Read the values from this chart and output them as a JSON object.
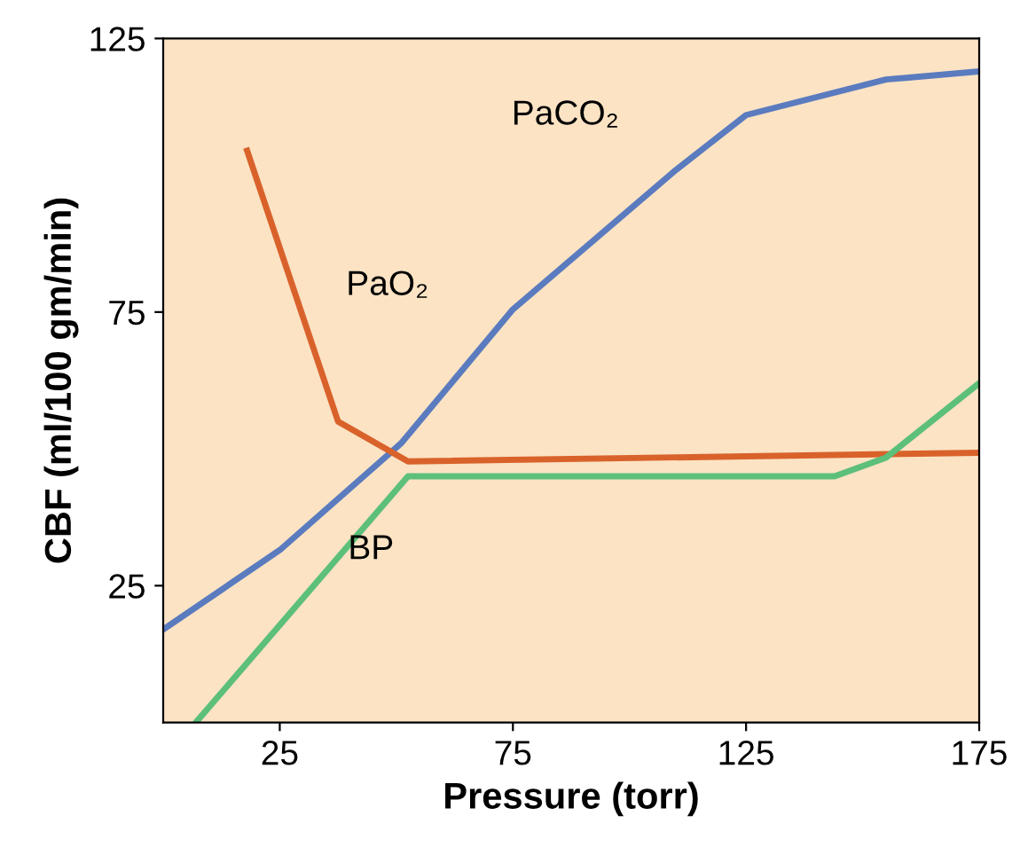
{
  "chart_data": {
    "type": "line",
    "xlabel": "Pressure (torr)",
    "ylabel": "CBF (ml/100 gm/min)",
    "xlim": [
      0,
      175
    ],
    "ylim": [
      0,
      125
    ],
    "xticks": [
      25,
      75,
      125,
      175
    ],
    "yticks": [
      25,
      75,
      125
    ],
    "grid": false,
    "legend": false,
    "marker": "none",
    "line_style": "solid",
    "series": [
      {
        "name": "PaCO₂",
        "color": "#5b7bbf",
        "x": [
          0,
          25,
          51,
          75,
          110,
          125,
          155,
          175
        ],
        "values": [
          17,
          31.5,
          51,
          75.5,
          101,
          111,
          117.5,
          119
        ]
      },
      {
        "name": "PaO₂",
        "color": "#d9622b",
        "x": [
          18,
          37.5,
          52.5,
          175
        ],
        "values": [
          104.5,
          55,
          47.7,
          49.3
        ]
      },
      {
        "name": "BP",
        "color": "#5cbf7a",
        "x": [
          7,
          52.5,
          144,
          155,
          175
        ],
        "values": [
          0,
          45,
          45,
          48.4,
          62
        ]
      }
    ]
  }
}
